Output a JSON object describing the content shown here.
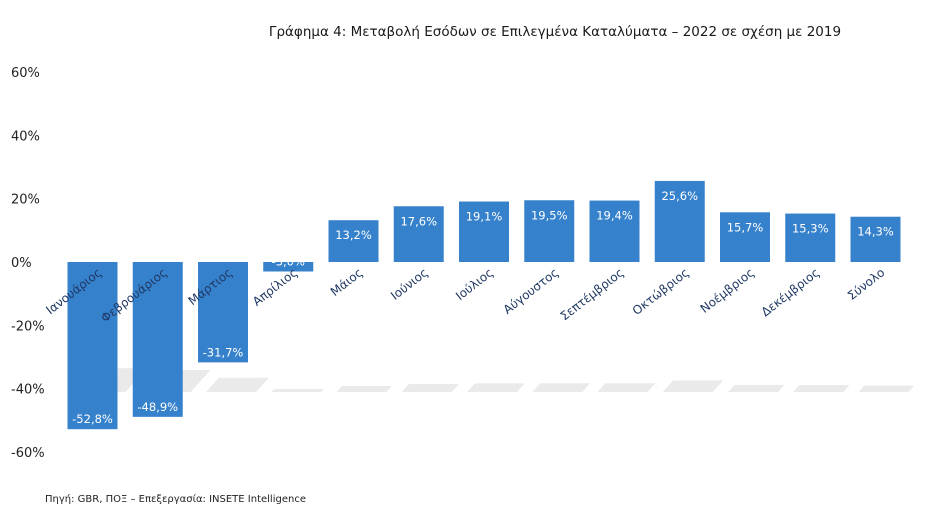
{
  "title": "Γράφημα 4: Μεταβολή Εσόδων σε Επιλεγμένα Καταλύματα – 2022 σε σχέση με 2019",
  "source": "Πηγή: GBR, ΠΟΞ – Επεξεργασία: INSETE Intelligence",
  "colors": {
    "bar": "#3681CC",
    "shadow": "#d9d9d9"
  },
  "chart_data": {
    "type": "bar",
    "title": "Γράφημα 4: Μεταβολή Εσόδων σε Επιλεγμένα Καταλύματα – 2022 σε σχέση με 2019",
    "categories": [
      "Ιανουάριος",
      "Φεβρουάριος",
      "Μάρτιος",
      "Απρίλιος",
      "Μάιος",
      "Ιούνιος",
      "Ιούλιος",
      "Αύγουστος",
      "Σεπτέμβριος",
      "Οκτώβριος",
      "Νοέμβριος",
      "Δεκέμβριος",
      "Σύνολο"
    ],
    "values": [
      -52.8,
      -48.9,
      -31.7,
      -3.0,
      13.2,
      17.6,
      19.1,
      19.5,
      19.4,
      25.6,
      15.7,
      15.3,
      14.3
    ],
    "data_labels": [
      "-52,8%",
      "-48,9%",
      "-31,7%",
      "-3,0%",
      "13,2%",
      "17,6%",
      "19,1%",
      "19,5%",
      "19,4%",
      "25,6%",
      "15,7%",
      "15,3%",
      "14,3%"
    ],
    "yticks": [
      "60%",
      "40%",
      "20%",
      "0%",
      "-20%",
      "-40%",
      "-60%"
    ],
    "ytick_values": [
      60,
      40,
      20,
      0,
      -20,
      -40,
      -60
    ],
    "ylim": [
      -60,
      60
    ],
    "xlabel": "",
    "ylabel": "",
    "grid": false,
    "legend": "none"
  }
}
